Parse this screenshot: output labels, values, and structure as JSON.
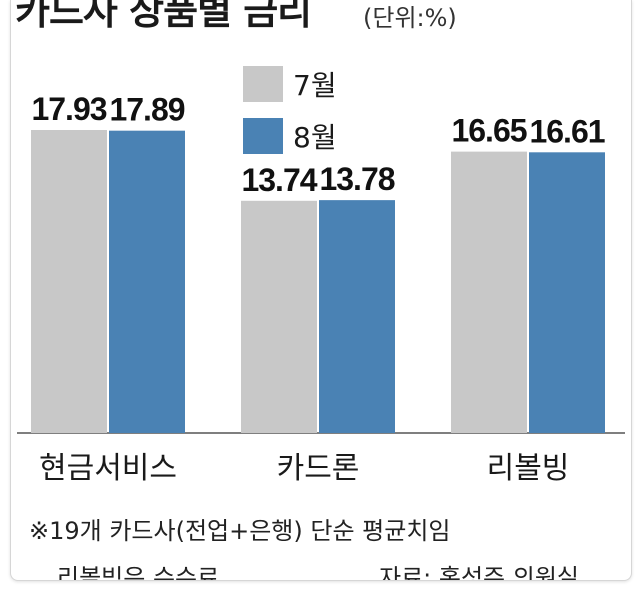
{
  "chart_data": {
    "type": "bar",
    "title": "카드사 상품별 금리",
    "unit": "(단위:%)",
    "categories": [
      "현금서비스",
      "카드론",
      "리볼빙"
    ],
    "series": [
      {
        "name": "7월",
        "values": [
          17.93,
          13.74,
          16.65
        ],
        "color": "#c8c8c8"
      },
      {
        "name": "8월",
        "values": [
          17.89,
          13.78,
          16.61
        ],
        "color": "#4a82b4"
      }
    ],
    "value_labels": [
      [
        "17.93",
        "13.74",
        "16.65"
      ],
      [
        "17.89",
        "13.78",
        "16.61"
      ]
    ],
    "ylim": [
      0,
      17.93
    ],
    "grid": false,
    "legend": "top-center",
    "notes": [
      "※19개 카드사(전업+은행) 단순 평균치임",
      "리볼빙은 수수료"
    ],
    "source": "자료: 홍성주 의원실"
  }
}
